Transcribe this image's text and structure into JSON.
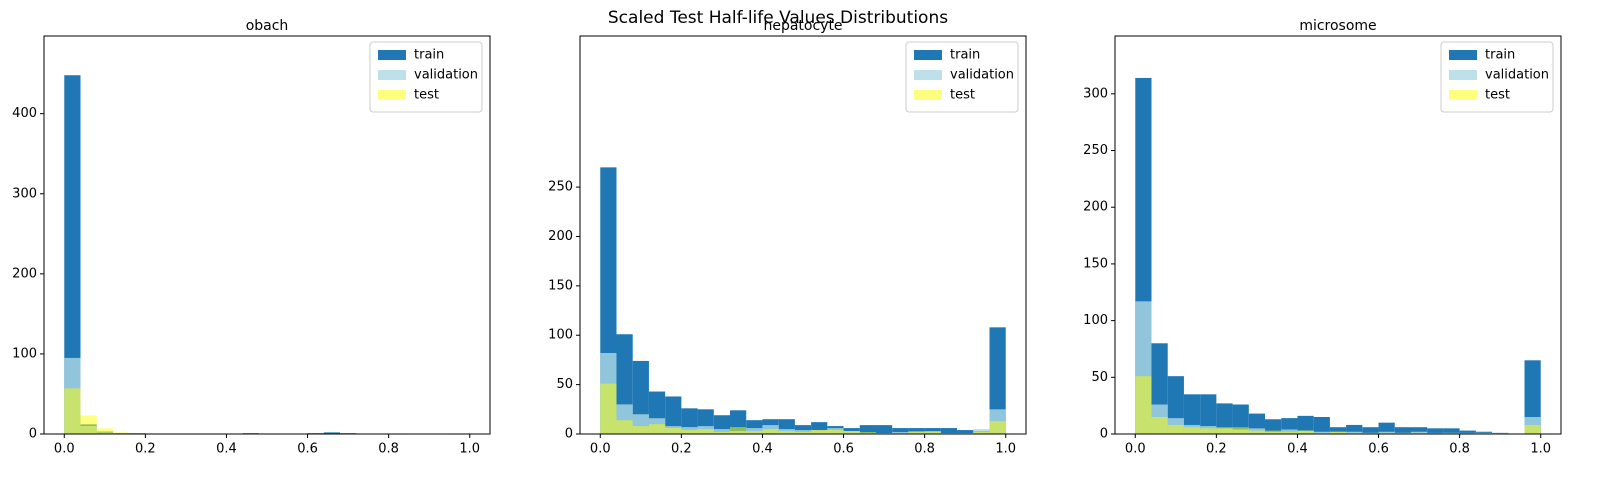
{
  "figure_title": "Scaled Test Half-life Values Distributions",
  "chart_data": [
    {
      "type": "histogram",
      "title": "obach",
      "bins": [
        0,
        0.04,
        0.08,
        0.12,
        0.16,
        0.2,
        0.24,
        0.28,
        0.32,
        0.36,
        0.4,
        0.44,
        0.48,
        0.52,
        0.56,
        0.6,
        0.64,
        0.68,
        0.72,
        0.76,
        0.8,
        0.84,
        0.88,
        0.92,
        0.96,
        1
      ],
      "series": [
        {
          "name": "train",
          "color": "#1f77b4",
          "opacity": 1,
          "values": [
            448,
            12,
            3,
            1,
            1,
            0,
            0,
            0,
            0,
            0,
            0,
            1,
            0,
            0,
            0,
            1,
            2,
            1,
            0,
            0,
            0,
            0,
            0,
            0,
            0
          ]
        },
        {
          "name": "validation",
          "color": "#add8e6",
          "opacity": 0.8,
          "values": [
            95,
            10,
            2,
            0,
            0,
            0,
            0,
            0,
            0,
            0,
            0,
            0,
            0,
            0,
            0,
            0,
            0,
            0,
            0,
            0,
            0,
            0,
            0,
            0,
            0
          ]
        },
        {
          "name": "test",
          "color": "#ffff00",
          "opacity": 0.5,
          "values": [
            57,
            23,
            7,
            2,
            1,
            1,
            1,
            1,
            1,
            1,
            0,
            0,
            1,
            0,
            0,
            0,
            0,
            0,
            0,
            0,
            1,
            0,
            0,
            0,
            1
          ]
        }
      ],
      "xlim": [
        -0.05,
        1.05
      ],
      "xticks": [
        {
          "value": 0,
          "label": "0.0"
        },
        0.2,
        0.4,
        0.6,
        0.8,
        {
          "value": 1,
          "label": "1.0"
        }
      ],
      "ylim": [
        0,
        497
      ],
      "yticks": [
        0,
        100,
        200,
        300,
        400
      ],
      "legend": "upper right"
    },
    {
      "type": "histogram",
      "title": "hepatocyte",
      "bins": [
        0,
        0.04,
        0.08,
        0.12,
        0.16,
        0.2,
        0.24,
        0.28,
        0.32,
        0.36,
        0.4,
        0.44,
        0.48,
        0.52,
        0.56,
        0.6,
        0.64,
        0.68,
        0.72,
        0.76,
        0.8,
        0.84,
        0.88,
        0.92,
        0.96,
        1
      ],
      "series": [
        {
          "name": "train",
          "color": "#1f77b4",
          "opacity": 1,
          "values": [
            270,
            101,
            74,
            43,
            38,
            26,
            25,
            19,
            24,
            14,
            15,
            15,
            9,
            12,
            8,
            6,
            9,
            9,
            6,
            6,
            6,
            6,
            4,
            3,
            108
          ]
        },
        {
          "name": "validation",
          "color": "#add8e6",
          "opacity": 0.8,
          "values": [
            82,
            30,
            20,
            16,
            8,
            7,
            8,
            5,
            3,
            6,
            9,
            5,
            4,
            4,
            6,
            3,
            1,
            1,
            2,
            2,
            3,
            1,
            1,
            5,
            25
          ]
        },
        {
          "name": "test",
          "color": "#ffff00",
          "opacity": 0.5,
          "values": [
            51,
            14,
            8,
            10,
            6,
            4,
            5,
            2,
            7,
            3,
            5,
            3,
            2,
            4,
            4,
            3,
            2,
            1,
            1,
            3,
            2,
            1,
            1,
            2,
            13
          ]
        }
      ],
      "xlim": [
        -0.05,
        1.05
      ],
      "xticks": [
        {
          "value": 0,
          "label": "0.0"
        },
        0.2,
        0.4,
        0.6,
        0.8,
        {
          "value": 1,
          "label": "1.0"
        }
      ],
      "ylim": [
        0,
        403
      ],
      "yticks": [
        0,
        50,
        100,
        150,
        200,
        250
      ],
      "legend": "upper right"
    },
    {
      "type": "histogram",
      "title": "microsome",
      "bins": [
        0,
        0.04,
        0.08,
        0.12,
        0.16,
        0.2,
        0.24,
        0.28,
        0.32,
        0.36,
        0.4,
        0.44,
        0.48,
        0.52,
        0.56,
        0.6,
        0.64,
        0.68,
        0.72,
        0.76,
        0.8,
        0.84,
        0.88,
        0.92,
        0.96,
        1
      ],
      "series": [
        {
          "name": "train",
          "color": "#1f77b4",
          "opacity": 1,
          "values": [
            314,
            80,
            51,
            35,
            35,
            27,
            26,
            18,
            13,
            14,
            16,
            15,
            6,
            8,
            6,
            10,
            6,
            6,
            5,
            5,
            3,
            2,
            1,
            0,
            65
          ]
        },
        {
          "name": "validation",
          "color": "#add8e6",
          "opacity": 0.8,
          "values": [
            117,
            26,
            14,
            8,
            7,
            5,
            4,
            5,
            2,
            4,
            3,
            2,
            2,
            2,
            1,
            2,
            1,
            2,
            1,
            1,
            1,
            1,
            1,
            0,
            15
          ]
        },
        {
          "name": "test",
          "color": "#ffff00",
          "opacity": 0.5,
          "values": [
            51,
            15,
            8,
            6,
            5,
            6,
            6,
            3,
            3,
            2,
            3,
            1,
            2,
            1,
            1,
            1,
            1,
            1,
            0,
            1,
            0,
            1,
            0,
            0,
            8
          ]
        }
      ],
      "xlim": [
        -0.05,
        1.05
      ],
      "xticks": [
        {
          "value": 0,
          "label": "0.0"
        },
        0.2,
        0.4,
        0.6,
        0.8,
        {
          "value": 1,
          "label": "1.0"
        }
      ],
      "ylim": [
        0,
        351
      ],
      "yticks": [
        0,
        50,
        100,
        150,
        200,
        250,
        300
      ],
      "legend": "upper right"
    }
  ]
}
